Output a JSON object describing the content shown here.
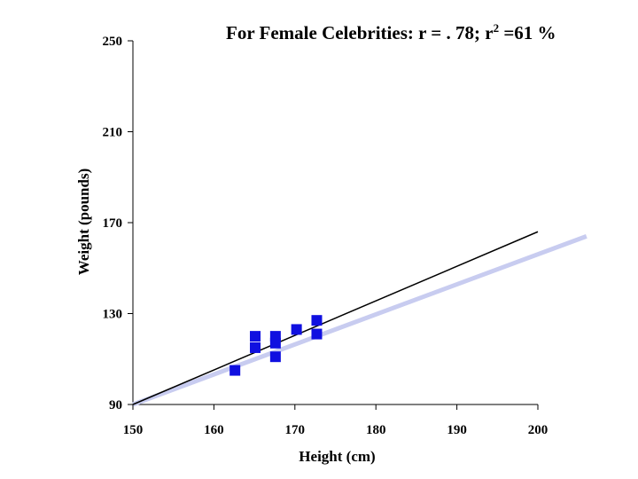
{
  "title": {
    "prefix": "For Female Celebrities:  r = . 78; r",
    "sup": "2",
    "suffix": " =61 %"
  },
  "chart_data": {
    "type": "scatter",
    "title": "For Female Celebrities:  r = . 78; r2 =61 %",
    "xlabel": "Height (cm)",
    "ylabel": "Weight (pounds)",
    "xlim": [
      150,
      200
    ],
    "ylim": [
      90,
      250
    ],
    "xticks": [
      150,
      160,
      170,
      180,
      190,
      200
    ],
    "yticks": [
      90,
      130,
      170,
      210,
      250
    ],
    "points": [
      {
        "x": 162.6,
        "y": 105
      },
      {
        "x": 165.1,
        "y": 120
      },
      {
        "x": 165.1,
        "y": 115
      },
      {
        "x": 167.6,
        "y": 120
      },
      {
        "x": 167.6,
        "y": 117
      },
      {
        "x": 167.6,
        "y": 111
      },
      {
        "x": 170.2,
        "y": 123
      },
      {
        "x": 172.7,
        "y": 127
      },
      {
        "x": 172.7,
        "y": 121
      }
    ],
    "lines": [
      {
        "name": "fitted-regression-line",
        "color": "#000000",
        "from": [
          150,
          90
        ],
        "to": [
          200,
          166
        ]
      },
      {
        "name": "reference-line",
        "color": "#c8ccf0",
        "from": [
          150,
          90
        ],
        "to": [
          206,
          164
        ]
      }
    ],
    "marker_color": "#1010e0"
  }
}
